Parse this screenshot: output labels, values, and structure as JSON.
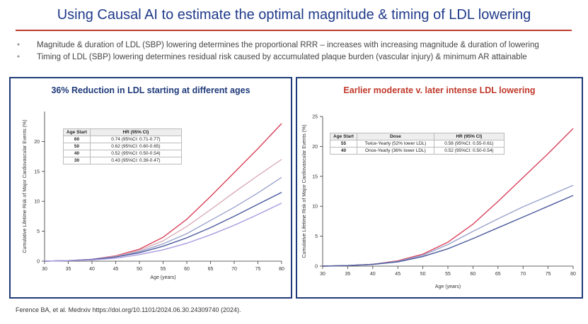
{
  "slide": {
    "title": "Using Causal AI to estimate the optimal magnitude & timing of LDL lowering",
    "bullets": [
      "Magnitude & duration of LDL (SBP) lowering determines the proportional RRR – increases with increasing magnitude & duration of lowering",
      "Timing of LDL (SBP) lowering determines residual risk caused by accumulated plaque burden (vascular injury) & minimum AR attainable"
    ],
    "footer": "Ference BA, et al. Medrxiv https://doi.org/10.1101/2024.06.30.24309740 (2024).",
    "colors": {
      "title": "#1f3a8a",
      "rule": "#c0392b",
      "panel_border": "#1f3a7a"
    }
  },
  "chart_data": [
    {
      "type": "line",
      "panel_title": "36% Reduction in LDL starting at different ages",
      "xlabel": "Age (years)",
      "ylabel": "Cumulative Lifetime Risk of Major Cardiovascular Events (%)",
      "xlim": [
        30,
        80
      ],
      "ylim": [
        0,
        25
      ],
      "xticks": [
        30,
        35,
        40,
        45,
        50,
        55,
        60,
        65,
        70,
        75,
        80
      ],
      "yticks": [
        0,
        5,
        10,
        15,
        20
      ],
      "x": [
        30,
        35,
        40,
        45,
        50,
        55,
        60,
        65,
        70,
        75,
        80
      ],
      "series": [
        {
          "color": "#d9415a",
          "values": [
            0,
            0.1,
            0.3,
            0.9,
            2.0,
            4.0,
            7.0,
            10.8,
            14.8,
            18.8,
            23.0
          ]
        },
        {
          "color": "#d9aeb8",
          "values": [
            0,
            0.1,
            0.3,
            0.8,
            1.8,
            3.4,
            5.8,
            8.6,
            11.5,
            14.3,
            17.0
          ]
        },
        {
          "color": "#9aa3cc",
          "values": [
            0,
            0.1,
            0.3,
            0.7,
            1.6,
            2.9,
            4.6,
            6.8,
            9.0,
            11.4,
            14.0
          ]
        },
        {
          "color": "#4a5a9c",
          "values": [
            0,
            0.1,
            0.3,
            0.7,
            1.4,
            2.5,
            3.9,
            5.6,
            7.5,
            9.5,
            11.5
          ]
        },
        {
          "color": "#a99ae0",
          "values": [
            0,
            0.1,
            0.2,
            0.5,
            1.1,
            1.9,
            3.0,
            4.4,
            6.0,
            7.8,
            9.7
          ]
        }
      ],
      "table": {
        "headers": [
          "Age Start",
          "HR (95% CI)"
        ],
        "rows": [
          [
            "60",
            "0.74 (95%CI: 0.71-0.77)"
          ],
          [
            "50",
            "0.62 (95%CI: 0.60-0.65)"
          ],
          [
            "40",
            "0.52 (95%CI: 0.50-0.54)"
          ],
          [
            "30",
            "0.43 (95%CI: 0.39-0.47)"
          ]
        ]
      }
    },
    {
      "type": "line",
      "panel_title": "Earlier moderate v. later intense LDL lowering",
      "xlabel": "Age (years)",
      "ylabel": "Cumulative Lifetime Risk of Major Cardiovascular Events (%)",
      "xlim": [
        30,
        80
      ],
      "ylim": [
        0,
        25
      ],
      "xticks": [
        30,
        35,
        40,
        45,
        50,
        55,
        60,
        65,
        70,
        75,
        80
      ],
      "yticks": [
        0,
        5,
        10,
        15,
        20,
        25
      ],
      "x": [
        30,
        35,
        40,
        45,
        50,
        55,
        60,
        65,
        70,
        75,
        80
      ],
      "series": [
        {
          "color": "#d9415a",
          "values": [
            0,
            0.1,
            0.3,
            0.9,
            2.0,
            4.0,
            7.0,
            10.8,
            14.8,
            18.8,
            23.0
          ]
        },
        {
          "color": "#9aa3cc",
          "values": [
            0,
            0.1,
            0.3,
            0.8,
            1.8,
            3.6,
            5.8,
            7.9,
            9.9,
            11.7,
            13.5
          ]
        },
        {
          "color": "#4a5a9c",
          "values": [
            0,
            0.1,
            0.3,
            0.7,
            1.6,
            2.9,
            4.6,
            6.4,
            8.2,
            10.0,
            11.8
          ]
        }
      ],
      "table": {
        "headers": [
          "Age Start",
          "Dose",
          "HR (95% CI)"
        ],
        "rows": [
          [
            "55",
            "Twice-Yearly (52% lower LDL)",
            "0.58 (95%CI: 0.55-0.61)"
          ],
          [
            "40",
            "Once-Yearly (36% lower LDL)",
            "0.52 (95%CI: 0.50-0.54)"
          ]
        ]
      }
    }
  ]
}
